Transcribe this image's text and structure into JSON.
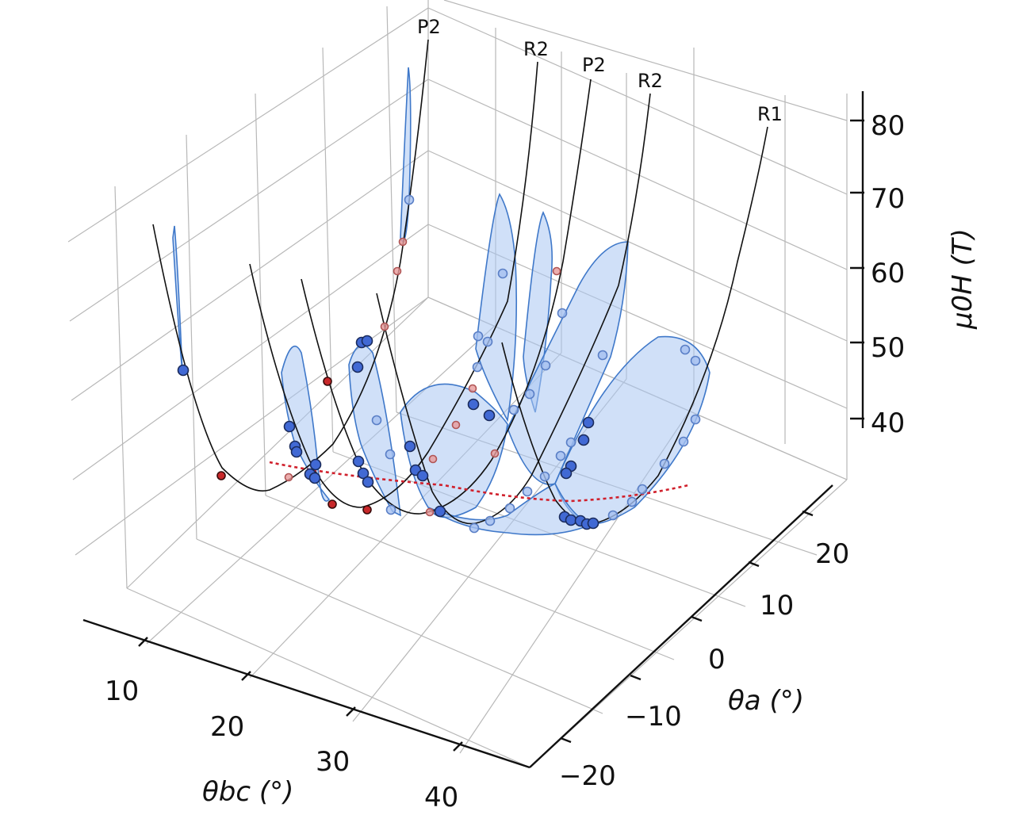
{
  "chart_data": {
    "type": "3d-scatter-with-fitted-curves",
    "axes": {
      "x": {
        "label": "θbc (°)",
        "ticks": [
          "10",
          "20",
          "30",
          "40"
        ]
      },
      "y": {
        "label": "θa (°)",
        "ticks": [
          "−20",
          "−10",
          "0",
          "10",
          "20"
        ]
      },
      "z": {
        "label": "μ0H (T)",
        "ticks": [
          "40",
          "50",
          "60",
          "70",
          "80"
        ]
      }
    },
    "curve_labels": [
      "P2",
      "R2",
      "P2",
      "R2",
      "R1"
    ],
    "colors": {
      "sheet_fill": "#a9c6f2",
      "sheet_edge": "#3f78c9",
      "points_blue": "#4169d4",
      "points_red": "#c8282a",
      "minimum_line": "#d0202c",
      "grid": "#b8b8b8"
    },
    "grid": true
  }
}
